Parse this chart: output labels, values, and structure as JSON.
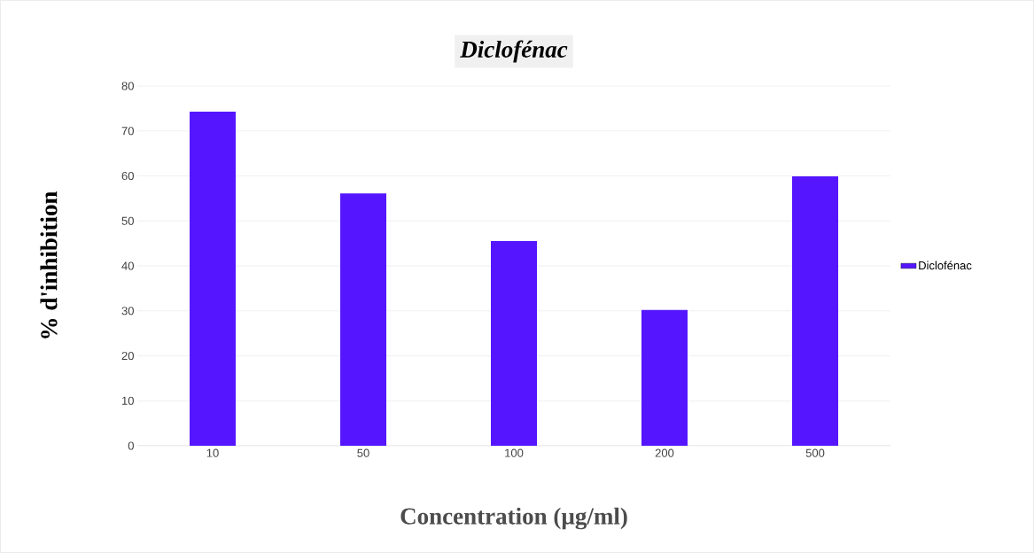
{
  "chart_data": {
    "type": "bar",
    "title": "Diclofénac",
    "xlabel": "Concentration (µg/ml)",
    "ylabel": "%  d'inhibition",
    "categories": [
      "10",
      "50",
      "100",
      "200",
      "500"
    ],
    "series": [
      {
        "name": "Diclofénac",
        "color": "#5516ff",
        "values": [
          74.3,
          56.1,
          45.5,
          30.2,
          59.9
        ]
      }
    ],
    "ylim": [
      0,
      80
    ],
    "yticks": [
      0,
      10,
      20,
      30,
      40,
      50,
      60,
      70,
      80
    ],
    "grid": "y",
    "legend": "right"
  }
}
